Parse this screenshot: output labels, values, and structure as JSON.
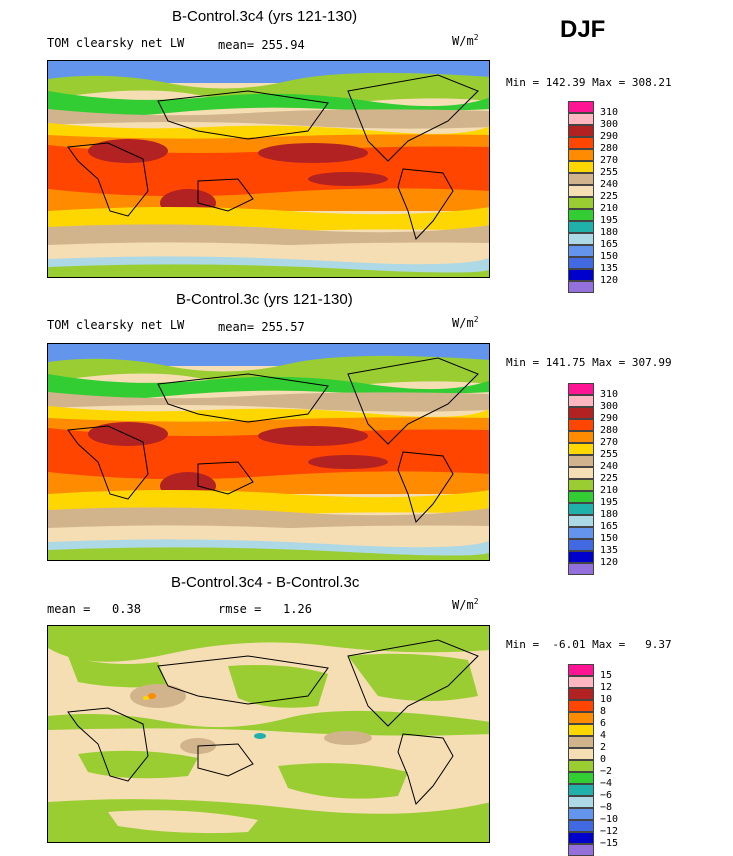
{
  "season": "DJF",
  "panels": [
    {
      "title": "B-Control.3c4 (yrs 121-130)",
      "left_label": "TOM clearsky net LW",
      "stat_label": "mean= 255.94",
      "units_base": "W/m",
      "units_exp": "2",
      "minmax": "Min = 142.39 Max = 308.21",
      "ticks": [
        "310",
        "300",
        "290",
        "280",
        "270",
        "255",
        "240",
        "225",
        "210",
        "195",
        "180",
        "165",
        "150",
        "135",
        "120"
      ]
    },
    {
      "title": "B-Control.3c (yrs 121-130)",
      "left_label": "TOM clearsky net LW",
      "stat_label": "mean= 255.57",
      "units_base": "W/m",
      "units_exp": "2",
      "minmax": "Min = 141.75 Max = 307.99",
      "ticks": [
        "310",
        "300",
        "290",
        "280",
        "270",
        "255",
        "240",
        "225",
        "210",
        "195",
        "180",
        "165",
        "150",
        "135",
        "120"
      ]
    },
    {
      "title": "B-Control.3c4 - B-Control.3c",
      "left_label": "mean =   0.38",
      "stat_label": "rmse =   1.26",
      "units_base": "W/m",
      "units_exp": "2",
      "minmax": "Min =  -6.01 Max =   9.37",
      "ticks": [
        "15",
        "12",
        "10",
        "8",
        "6",
        "4",
        "2",
        "0",
        "−2",
        "−4",
        "−6",
        "−8",
        "−10",
        "−12",
        "−15"
      ]
    }
  ],
  "colors": {
    "levels": [
      "#ff1493",
      "#ffb6c1",
      "#b22222",
      "#ff4500",
      "#ff8c00",
      "#ffd700",
      "#d2b48c",
      "#f5deb3",
      "#9acd32",
      "#32cd32",
      "#20b2aa",
      "#add8e6",
      "#6495ed",
      "#4169e1",
      "#0000cd",
      "#9370db"
    ]
  }
}
